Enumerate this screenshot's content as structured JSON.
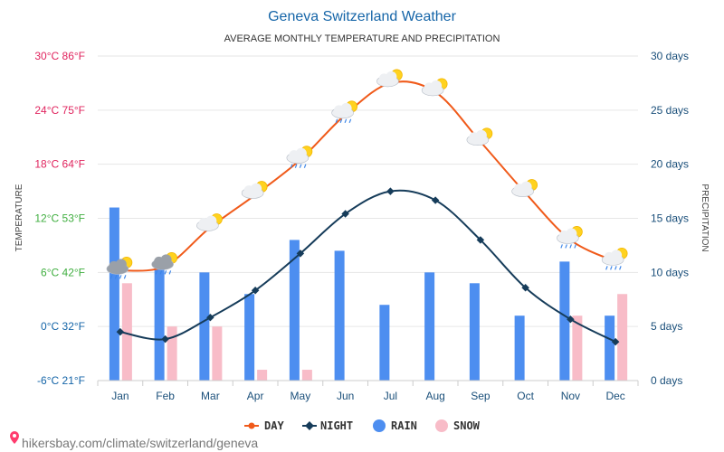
{
  "chart_data": {
    "type": "bar+line",
    "title": "Geneva Switzerland Weather",
    "subtitle": "AVERAGE MONTHLY TEMPERATURE AND PRECIPITATION",
    "categories": [
      "Jan",
      "Feb",
      "Mar",
      "Apr",
      "May",
      "Jun",
      "Jul",
      "Aug",
      "Sep",
      "Oct",
      "Nov",
      "Dec"
    ],
    "left_axis": {
      "label": "TEMPERATURE",
      "ylim": [
        -6,
        30
      ],
      "ticks": [
        {
          "value": 30,
          "c": "30°C",
          "f": "86°F",
          "color": "#e0245e"
        },
        {
          "value": 24,
          "c": "24°C",
          "f": "75°F",
          "color": "#e0245e"
        },
        {
          "value": 18,
          "c": "18°C",
          "f": "64°F",
          "color": "#e0245e"
        },
        {
          "value": 12,
          "c": "12°C",
          "f": "53°F",
          "color": "#3fae3f"
        },
        {
          "value": 6,
          "c": "6°C",
          "f": "42°F",
          "color": "#3fae3f"
        },
        {
          "value": 0,
          "c": "0°C",
          "f": "32°F",
          "color": "#1565a8"
        },
        {
          "value": -6,
          "c": "-6°C",
          "f": "21°F",
          "color": "#1565a8"
        }
      ]
    },
    "right_axis": {
      "label": "PRECIPITATION",
      "ylim": [
        0,
        30
      ],
      "ticks": [
        {
          "value": 30,
          "label": "30 days"
        },
        {
          "value": 25,
          "label": "25 days"
        },
        {
          "value": 20,
          "label": "20 days"
        },
        {
          "value": 15,
          "label": "15 days"
        },
        {
          "value": 10,
          "label": "10 days"
        },
        {
          "value": 5,
          "label": "5 days"
        },
        {
          "value": 0,
          "label": "0 days"
        }
      ]
    },
    "series": [
      {
        "name": "DAY",
        "kind": "line",
        "axis": "left",
        "color": "#f05a1a",
        "values": [
          6.2,
          6.7,
          11.0,
          14.6,
          18.5,
          23.5,
          27.0,
          26.0,
          20.5,
          14.8,
          9.6,
          7.2
        ]
      },
      {
        "name": "NIGHT",
        "kind": "line",
        "axis": "left",
        "color": "#163c5a",
        "values": [
          -0.6,
          -1.4,
          1.0,
          4.0,
          8.1,
          12.5,
          15.0,
          14.0,
          9.6,
          4.3,
          0.8,
          -1.7
        ]
      },
      {
        "name": "RAIN",
        "kind": "bar",
        "axis": "right",
        "color": "#4d8ef0",
        "values": [
          16,
          11,
          10,
          8,
          13,
          12,
          7,
          10,
          9,
          6,
          11,
          6
        ]
      },
      {
        "name": "SNOW",
        "kind": "bar",
        "axis": "right",
        "color": "#f8bcc8",
        "values": [
          9,
          5,
          5,
          1,
          1,
          0,
          0,
          0,
          0,
          0,
          6,
          8
        ]
      }
    ],
    "weather_icons": [
      "partly-cloudy-rain-snow",
      "partly-cloudy-rain-snow",
      "partly-cloudy",
      "partly-cloudy",
      "partly-cloudy-rain",
      "partly-cloudy-rain",
      "partly-cloudy",
      "partly-cloudy",
      "partly-cloudy",
      "partly-cloudy",
      "partly-cloudy-rain",
      "partly-cloudy-rain"
    ],
    "grid": true,
    "legend_position": "bottom"
  },
  "source": "hikersbay.com/climate/switzerland/geneva"
}
